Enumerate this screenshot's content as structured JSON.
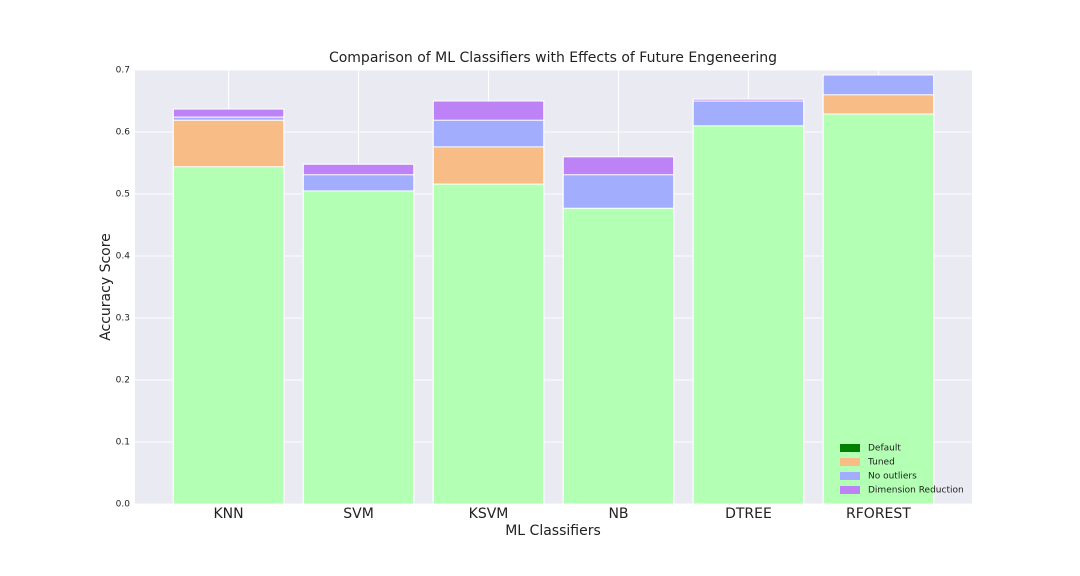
{
  "chart_data": {
    "type": "bar",
    "mode": "overlap",
    "title": "Comparison of ML Classifiers with Effects of Future Engeneering",
    "x_label": "ML Classifiers",
    "y_label": "Accuracy Score",
    "categories": [
      "KNN",
      "SVM",
      "KSVM",
      "NB",
      "DTREE",
      "RFOREST"
    ],
    "series": [
      {
        "name": "Default",
        "color": "#b3ffb3",
        "legend_color": "#008000",
        "values": [
          0.544,
          0.505,
          0.516,
          0.477,
          0.61,
          0.629
        ]
      },
      {
        "name": "Tuned",
        "color": "#f8bc86",
        "values": [
          0.619,
          null,
          0.576,
          null,
          null,
          0.66
        ]
      },
      {
        "name": "No outliers",
        "color": "#a2aefd",
        "values": [
          0.624,
          0.531,
          0.619,
          0.531,
          0.65,
          0.692
        ]
      },
      {
        "name": "Dimension Reduction",
        "color": "#bd82f5",
        "values": [
          0.637,
          0.548,
          0.65,
          0.56,
          0.653,
          null
        ]
      }
    ],
    "ylim": [
      0,
      0.7
    ],
    "yticks": [
      {
        "value": 0,
        "label": "0.0"
      },
      0.1,
      0.2,
      0.3,
      0.4,
      0.5,
      0.6,
      0.7
    ],
    "grid": true,
    "legend": "lower right"
  }
}
